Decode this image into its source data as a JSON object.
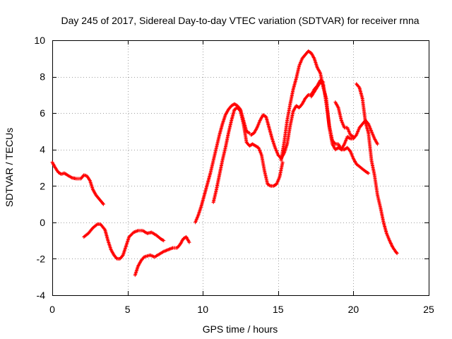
{
  "chart_data": {
    "type": "scatter",
    "title": "Day 245 of 2017, Sidereal Day-to-day VTEC variation (SDTVAR) for receiver rnna",
    "xlabel": "GPS time / hours",
    "ylabel": "SDTVAR / TECUs",
    "xlim": [
      0,
      25
    ],
    "ylim": [
      -4,
      10
    ],
    "xticks": [
      "0",
      "5",
      "10",
      "15",
      "20",
      "25"
    ],
    "yticks": [
      "-4",
      "-2",
      "0",
      "2",
      "4",
      "6",
      "8",
      "10"
    ],
    "grid": true,
    "marker": "plus",
    "color": "#ff0000",
    "series": [
      {
        "x": [
          0.0,
          0.2,
          0.4,
          0.6,
          0.8,
          1.0,
          1.3,
          1.6,
          1.9,
          2.1,
          2.3,
          2.5,
          2.7,
          2.9,
          3.1,
          3.3,
          3.4
        ],
        "y": [
          3.3,
          3.0,
          2.75,
          2.65,
          2.7,
          2.6,
          2.45,
          2.4,
          2.4,
          2.6,
          2.55,
          2.3,
          1.8,
          1.5,
          1.3,
          1.1,
          1.0
        ]
      },
      {
        "x": [
          2.1,
          2.4,
          2.7,
          3.0,
          3.2,
          3.5,
          3.7,
          3.9,
          4.1,
          4.3,
          4.5,
          4.7,
          4.9,
          5.1,
          5.4,
          5.7,
          6.0,
          6.3,
          6.6,
          6.9,
          7.2,
          7.4
        ],
        "y": [
          -0.8,
          -0.6,
          -0.3,
          -0.1,
          -0.1,
          -0.4,
          -1.0,
          -1.5,
          -1.8,
          -2.0,
          -2.0,
          -1.8,
          -1.3,
          -0.8,
          -0.55,
          -0.45,
          -0.45,
          -0.6,
          -0.55,
          -0.7,
          -0.9,
          -1.0
        ]
      },
      {
        "x": [
          5.5,
          5.7,
          5.9,
          6.1,
          6.3,
          6.5,
          6.8,
          7.1,
          7.4,
          7.7,
          8.0,
          8.3,
          8.5,
          8.7,
          8.9,
          9.1
        ],
        "y": [
          -2.9,
          -2.4,
          -2.1,
          -1.9,
          -1.85,
          -1.8,
          -1.9,
          -1.75,
          -1.6,
          -1.5,
          -1.4,
          -1.4,
          -1.2,
          -0.9,
          -0.8,
          -1.1
        ]
      },
      {
        "x": [
          9.5,
          9.7,
          9.9,
          10.1,
          10.3,
          10.5,
          10.7,
          10.9,
          11.1,
          11.3,
          11.5,
          11.7,
          11.9,
          12.1,
          12.3,
          12.5,
          12.7,
          12.9,
          13.1
        ],
        "y": [
          0.0,
          0.4,
          0.9,
          1.5,
          2.1,
          2.7,
          3.4,
          4.1,
          4.8,
          5.4,
          5.9,
          6.2,
          6.4,
          6.5,
          6.4,
          6.2,
          5.6,
          5.0,
          4.9
        ]
      },
      {
        "x": [
          10.7,
          10.9,
          11.1,
          11.3,
          11.5,
          11.7,
          11.9,
          12.1,
          12.3,
          12.5,
          12.7,
          12.9,
          13.1,
          13.3,
          13.5,
          13.7,
          13.9,
          14.1,
          14.3,
          14.5,
          14.7,
          14.9,
          15.1,
          15.3
        ],
        "y": [
          1.1,
          1.8,
          2.6,
          3.4,
          4.1,
          4.9,
          5.6,
          6.2,
          6.3,
          6.1,
          5.4,
          4.4,
          4.2,
          4.3,
          4.2,
          4.1,
          3.7,
          2.8,
          2.1,
          2.0,
          2.0,
          2.1,
          2.5,
          3.3
        ]
      },
      {
        "x": [
          13.2,
          13.4,
          13.6,
          13.8,
          14.0,
          14.2,
          14.4,
          14.6,
          14.8,
          15.0,
          15.2,
          15.4,
          15.6,
          15.8,
          16.0,
          16.2,
          16.4,
          16.6,
          16.8,
          17.0,
          17.2,
          17.4,
          17.6,
          17.8,
          18.0
        ],
        "y": [
          4.8,
          4.9,
          5.2,
          5.6,
          5.9,
          5.8,
          5.2,
          4.6,
          4.1,
          3.7,
          3.5,
          3.8,
          4.3,
          5.3,
          6.1,
          6.4,
          6.3,
          6.5,
          6.8,
          7.0,
          7.0,
          7.3,
          7.5,
          7.8,
          7.7
        ]
      },
      {
        "x": [
          15.2,
          15.4,
          15.6,
          15.8,
          16.0,
          16.2,
          16.4,
          16.6,
          16.8,
          17.0,
          17.2,
          17.4,
          17.6,
          17.8,
          18.0,
          18.2,
          18.4,
          18.6,
          18.8,
          19.0,
          19.2,
          19.4,
          19.6,
          19.8,
          20.0,
          20.2,
          20.4,
          20.6,
          20.8,
          21.0,
          21.2,
          21.4,
          21.6
        ],
        "y": [
          3.4,
          4.4,
          5.6,
          6.5,
          7.3,
          7.9,
          8.6,
          9.0,
          9.2,
          9.4,
          9.3,
          9.0,
          8.5,
          8.2,
          7.4,
          6.8,
          5.2,
          4.3,
          4.0,
          4.1,
          4.0,
          4.3,
          4.7,
          4.6,
          4.6,
          4.8,
          5.2,
          5.4,
          5.6,
          5.4,
          5.0,
          4.6,
          4.3
        ]
      },
      {
        "x": [
          17.2,
          17.5,
          17.8,
          18.0,
          18.2,
          18.4,
          18.6,
          18.8,
          19.0,
          19.2,
          19.4,
          19.6,
          19.8,
          20.0,
          20.2,
          20.5,
          20.8,
          21.0
        ],
        "y": [
          6.9,
          7.3,
          7.7,
          7.6,
          6.5,
          5.3,
          4.5,
          4.3,
          4.3,
          4.0,
          4.0,
          4.1,
          3.9,
          3.5,
          3.2,
          3.0,
          2.8,
          2.7
        ]
      },
      {
        "x": [
          18.8,
          19.0,
          19.2,
          19.4,
          19.6,
          19.8,
          20.0
        ],
        "y": [
          6.6,
          6.3,
          5.6,
          5.2,
          5.2,
          4.8,
          4.7
        ]
      },
      {
        "x": [
          20.2,
          20.4,
          20.6,
          20.8,
          21.0,
          21.2,
          21.4,
          21.6,
          21.8,
          22.0,
          22.2,
          22.4,
          22.6,
          22.8,
          22.9
        ],
        "y": [
          7.6,
          7.4,
          6.8,
          5.5,
          4.9,
          3.4,
          2.6,
          1.5,
          0.8,
          0.0,
          -0.6,
          -1.0,
          -1.35,
          -1.6,
          -1.7
        ]
      }
    ]
  }
}
